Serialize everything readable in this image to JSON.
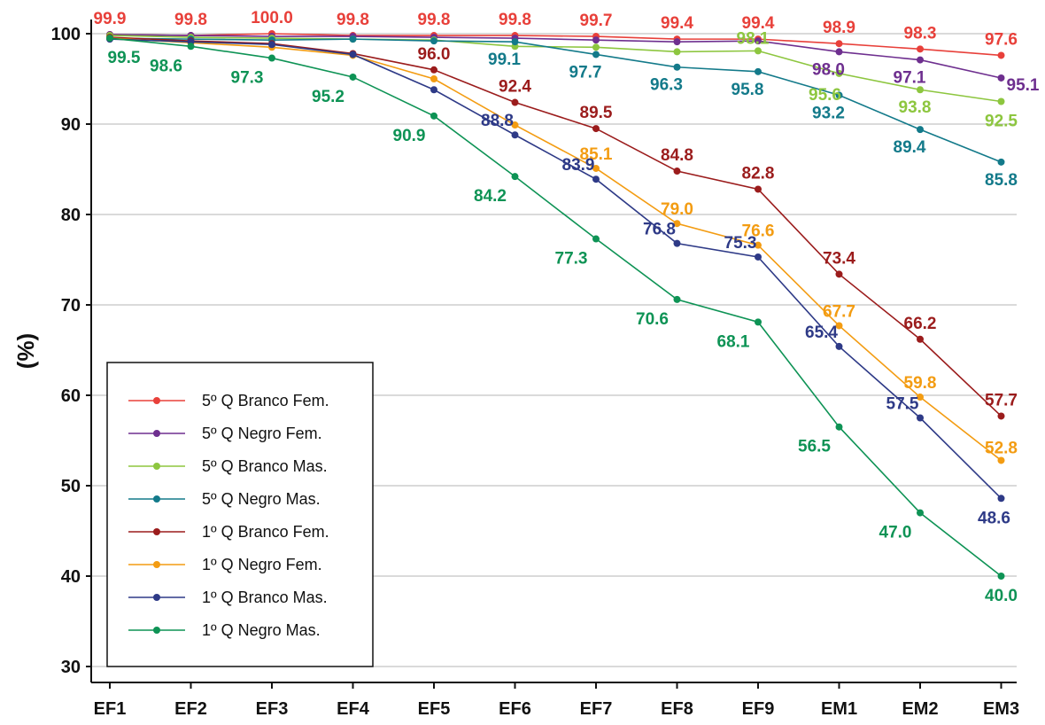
{
  "chart_data": {
    "type": "line",
    "categories": [
      "EF1",
      "EF2",
      "EF3",
      "EF4",
      "EF5",
      "EF6",
      "EF7",
      "EF8",
      "EF9",
      "EM1",
      "EM2",
      "EM3"
    ],
    "ylabel": "(%)",
    "xlabel": "",
    "ylim": [
      30,
      100
    ],
    "yticks": [
      30,
      40,
      50,
      60,
      70,
      80,
      90,
      100
    ],
    "grid": "horizontal",
    "legend_position": "bottom-left",
    "series": [
      {
        "name": "5º Q Branco Fem.",
        "color": "#e8403a",
        "values": [
          99.9,
          99.8,
          100.0,
          99.8,
          99.8,
          99.8,
          99.7,
          99.4,
          99.4,
          98.9,
          98.3,
          97.6
        ],
        "labels": [
          "99.9",
          "99.8",
          "100.0",
          "99.8",
          "99.8",
          "99.8",
          "99.7",
          "99.4",
          "99.4",
          "98.9",
          "98.3",
          "97.6"
        ],
        "labeled": [
          true,
          true,
          true,
          true,
          true,
          true,
          true,
          true,
          true,
          true,
          true,
          true
        ]
      },
      {
        "name": "5º Q Negro Fem.",
        "color": "#6e2f8f",
        "values": [
          99.9,
          99.8,
          99.7,
          99.7,
          99.6,
          99.5,
          99.3,
          99.1,
          99.2,
          98.0,
          97.1,
          95.1
        ],
        "labels": [
          "",
          "",
          "",
          "",
          "",
          "",
          "",
          "",
          "",
          "98.0",
          "97.1",
          "95.1"
        ],
        "labeled": [
          false,
          false,
          false,
          false,
          false,
          false,
          false,
          false,
          false,
          true,
          true,
          true
        ]
      },
      {
        "name": "5º Q Branco Mas.",
        "color": "#8dc63f",
        "values": [
          99.8,
          99.6,
          99.5,
          99.4,
          99.3,
          98.6,
          98.5,
          98.0,
          98.1,
          95.6,
          93.8,
          92.5
        ],
        "labels": [
          "",
          "",
          "",
          "",
          "",
          "",
          "",
          "",
          "98.1",
          "95.6",
          "93.8",
          "92.5"
        ],
        "labeled": [
          false,
          false,
          false,
          false,
          false,
          false,
          false,
          false,
          true,
          true,
          true,
          true
        ]
      },
      {
        "name": "5º Q Negro Mas.",
        "color": "#137a8a",
        "values": [
          99.5,
          99.4,
          99.3,
          99.4,
          99.2,
          99.1,
          97.7,
          96.3,
          95.8,
          93.2,
          89.4,
          85.8
        ],
        "labels": [
          "",
          "",
          "",
          "",
          "",
          "99.1",
          "97.7",
          "96.3",
          "95.8",
          "93.2",
          "89.4",
          "85.8"
        ],
        "labeled": [
          false,
          false,
          false,
          false,
          false,
          true,
          true,
          true,
          true,
          true,
          true,
          true
        ]
      },
      {
        "name": "1º Q Branco Fem.",
        "color": "#9b1c1c",
        "values": [
          99.6,
          99.2,
          98.9,
          97.8,
          96.0,
          92.4,
          89.5,
          84.8,
          82.8,
          73.4,
          66.2,
          57.7
        ],
        "labels": [
          "",
          "",
          "",
          "",
          "96.0",
          "92.4",
          "89.5",
          "84.8",
          "82.8",
          "73.4",
          "66.2",
          "57.7"
        ],
        "labeled": [
          false,
          false,
          false,
          false,
          true,
          true,
          true,
          true,
          true,
          true,
          true,
          true
        ]
      },
      {
        "name": "1º Q Negro Fem.",
        "color": "#f39c12",
        "values": [
          99.5,
          99.0,
          98.5,
          97.6,
          95.0,
          89.9,
          85.1,
          79.0,
          76.6,
          67.7,
          59.8,
          52.8
        ],
        "labels": [
          "",
          "",
          "",
          "",
          "",
          "",
          "85.1",
          "79.0",
          "76.6",
          "67.7",
          "59.8",
          "52.8"
        ],
        "labeled": [
          false,
          false,
          false,
          false,
          false,
          false,
          true,
          true,
          true,
          true,
          true,
          true
        ]
      },
      {
        "name": "1º Q Branco Mas.",
        "color": "#2e3a87",
        "values": [
          99.4,
          99.1,
          98.8,
          97.7,
          93.8,
          88.8,
          83.9,
          76.8,
          75.3,
          65.4,
          57.5,
          48.6
        ],
        "labels": [
          "",
          "",
          "",
          "",
          "",
          "88.8",
          "83.9",
          "76.8",
          "75.3",
          "65.4",
          "57.5",
          "48.6"
        ],
        "labeled": [
          false,
          false,
          false,
          false,
          false,
          true,
          true,
          true,
          true,
          true,
          true,
          true
        ]
      },
      {
        "name": "1º Q Negro Mas.",
        "color": "#0e9355",
        "values": [
          99.5,
          98.6,
          97.3,
          95.2,
          90.9,
          84.2,
          77.3,
          70.6,
          68.1,
          56.5,
          47.0,
          40.0
        ],
        "labels": [
          "99.5",
          "98.6",
          "97.3",
          "95.2",
          "90.9",
          "84.2",
          "77.3",
          "70.6",
          "68.1",
          "56.5",
          "47.0",
          "40.0"
        ],
        "labeled": [
          true,
          true,
          true,
          true,
          true,
          true,
          true,
          true,
          true,
          true,
          true,
          true
        ]
      }
    ]
  }
}
